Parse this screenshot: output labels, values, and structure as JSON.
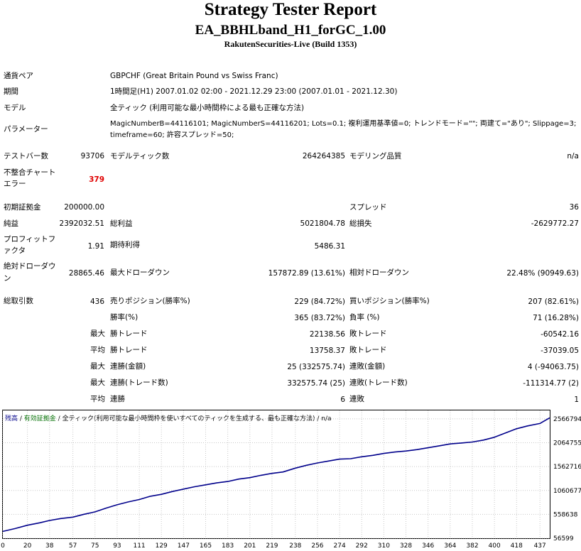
{
  "header": {
    "title": "Strategy Tester Report",
    "ea_name": "EA_BBHLband_H1_forGC_1.00",
    "server": "RakutenSecurities-Live (Build 1353)"
  },
  "info": {
    "pair_label": "通貨ペア",
    "pair_value": "GBPCHF (Great Britain Pound vs Swiss Franc)",
    "period_label": "期間",
    "period_value": "1時間足(H1) 2007.01.02 02:00 - 2021.12.29 23:00 (2007.01.01 - 2021.12.30)",
    "model_label": "モデル",
    "model_value": "全ティック (利用可能な最小時間枠による最も正確な方法)",
    "params_label": "パラメーター",
    "params_line1": "MagicNumberB=44116101; MagicNumberS=44116201; Lots=0.1; 複利運用基準値=0; トレンドモード=\"\"; 両建て=\"あり\"; Slippage=3;",
    "params_line2": "timeframe=60; 許容スプレッド=50;"
  },
  "stats": {
    "bars_label": "テストバー数",
    "bars_value": "93706",
    "ticks_label": "モデルティック数",
    "ticks_value": "264264385",
    "quality_label": "モデリング品質",
    "quality_value": "n/a",
    "mismatch_label_1": "不整合チャート",
    "mismatch_label_2": "エラー",
    "mismatch_value": "379",
    "deposit_label": "初期証拠金",
    "deposit_value": "200000.00",
    "spread_label": "スプレッド",
    "spread_value": "36",
    "net_label": "純益",
    "net_value": "2392032.51",
    "gross_profit_label": "総利益",
    "gross_profit_value": "5021804.78",
    "gross_loss_label": "総損失",
    "gross_loss_value": "-2629772.27",
    "pf_label_1": "プロフィットフ",
    "pf_label_2": "ァクタ",
    "pf_value": "1.91",
    "expected_label": "期待利得",
    "expected_value": "5486.31",
    "abs_dd_label_1": "絶対ドローダウ",
    "abs_dd_label_2": "ン",
    "abs_dd_value": "28865.46",
    "max_dd_label": "最大ドローダウン",
    "max_dd_value": "157872.89 (13.61%)",
    "rel_dd_label": "相対ドローダウン",
    "rel_dd_value": "22.48% (90949.63)",
    "total_trades_label": "総取引数",
    "total_trades_value": "436",
    "short_label": "売りポジション(勝率%)",
    "short_value": "229 (84.72%)",
    "long_label": "買いポジション(勝率%)",
    "long_value": "207 (82.61%)",
    "win_rate_label": "勝率(%)",
    "win_rate_value": "365 (83.72%)",
    "loss_rate_label": "負率 (%)",
    "loss_rate_value": "71 (16.28%)",
    "max_prefix": "最大",
    "avg_prefix": "平均",
    "largest_win_label": "勝トレード",
    "largest_win_value": "22138.56",
    "largest_loss_label": "敗トレード",
    "largest_loss_value": "-60542.16",
    "avg_win_label": "勝トレード",
    "avg_win_value": "13758.37",
    "avg_loss_label": "敗トレード",
    "avg_loss_value": "-37039.05",
    "max_cons_wins_money_label": "連勝(金額)",
    "max_cons_wins_money_value": "25 (332575.74)",
    "max_cons_loss_money_label": "連敗(金額)",
    "max_cons_loss_money_value": "4 (-94063.75)",
    "max_cons_wins_trades_label": "連勝(トレード数)",
    "max_cons_wins_trades_value": "332575.74 (25)",
    "max_cons_loss_trades_label": "連敗(トレード数)",
    "max_cons_loss_trades_value": "-111314.77 (2)",
    "avg_cons_wins_label": "連勝",
    "avg_cons_wins_value": "6",
    "avg_cons_loss_label": "連敗",
    "avg_cons_loss_value": "1"
  },
  "chart_legend": {
    "balance": "残高",
    "sep1": " / ",
    "equity": "有効証拠金",
    "sep2": " / ",
    "model": "全ティック(利用可能な最小時間枠を使いすべてのティックを生成する、最も正確な方法)",
    "sep3": " / ",
    "quality": "n/a"
  },
  "colors": {
    "balance_line": "#00008b",
    "equity_legend": "#007000",
    "error_value": "#e00000",
    "grid": "#c8c8c8"
  },
  "chart_data": {
    "type": "line",
    "title": "",
    "xlabel": "",
    "ylabel": "",
    "x_ticks": [
      0,
      20,
      38,
      57,
      75,
      93,
      111,
      129,
      147,
      165,
      183,
      201,
      219,
      238,
      256,
      274,
      292,
      310,
      328,
      346,
      364,
      382,
      400,
      418,
      437
    ],
    "y_ticks": [
      56599,
      558638,
      1060677,
      1562716,
      2064755,
      2566794
    ],
    "xlim": [
      0,
      445
    ],
    "ylim": [
      56599,
      2745000
    ],
    "grid": true,
    "series": [
      {
        "name": "残高",
        "x": [
          0,
          10,
          20,
          30,
          38,
          47,
          57,
          66,
          75,
          84,
          93,
          102,
          111,
          120,
          129,
          138,
          147,
          156,
          165,
          174,
          183,
          192,
          201,
          210,
          219,
          228,
          238,
          247,
          256,
          265,
          274,
          283,
          292,
          301,
          310,
          319,
          328,
          337,
          346,
          355,
          364,
          373,
          382,
          391,
          400,
          409,
          418,
          427,
          437,
          445
        ],
        "values": [
          200000,
          260000,
          330000,
          380000,
          430000,
          470000,
          500000,
          560000,
          610000,
          690000,
          760000,
          820000,
          870000,
          940000,
          980000,
          1040000,
          1090000,
          1140000,
          1180000,
          1220000,
          1250000,
          1300000,
          1330000,
          1380000,
          1420000,
          1450000,
          1530000,
          1590000,
          1640000,
          1680000,
          1720000,
          1730000,
          1770000,
          1800000,
          1840000,
          1870000,
          1890000,
          1920000,
          1960000,
          2000000,
          2040000,
          2060000,
          2080000,
          2120000,
          2180000,
          2270000,
          2360000,
          2420000,
          2470000,
          2590000
        ]
      }
    ]
  }
}
